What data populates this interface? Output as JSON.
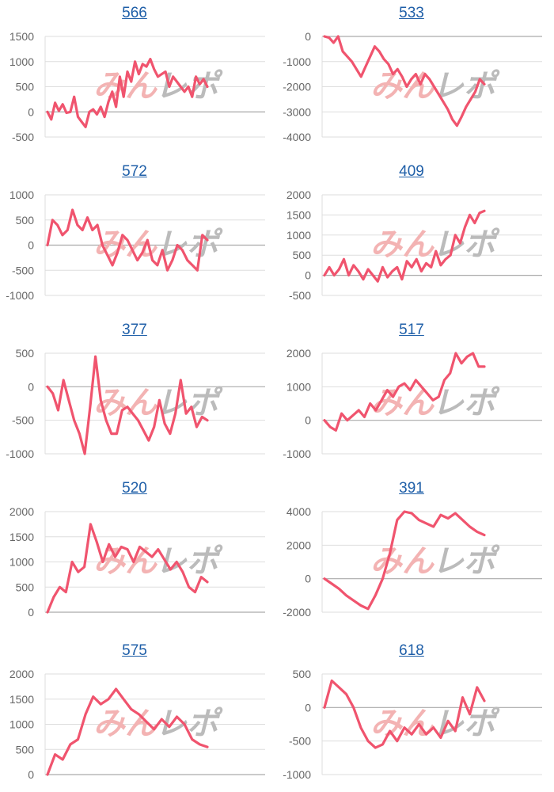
{
  "line_color": "#f0546e",
  "grid_color": "#dddddd",
  "zero_line_color": "#aaaaaa",
  "title_color": "#1f5fa8",
  "watermark": {
    "left": "みん",
    "right": "レポ",
    "left_color": "#f3b3b3",
    "right_color": "#bbbbbb"
  },
  "chart_data": [
    {
      "type": "line",
      "title": "566",
      "ylim": [
        -500,
        1500
      ],
      "yticks": [
        "1500",
        "1000",
        "500",
        "0",
        "-500"
      ],
      "tickvals": [
        1500,
        1000,
        500,
        0,
        -500
      ],
      "values": [
        0,
        -150,
        180,
        20,
        150,
        -20,
        0,
        300,
        -100,
        -200,
        -300,
        0,
        50,
        -50,
        100,
        -100,
        200,
        400,
        100,
        700,
        300,
        800,
        600,
        1000,
        750,
        950,
        900,
        1050,
        850,
        700,
        750,
        800,
        500,
        700,
        600,
        500,
        400,
        500,
        300,
        700,
        550,
        650,
        500
      ]
    },
    {
      "type": "line",
      "title": "533",
      "ylim": [
        -4000,
        0
      ],
      "yticks": [
        "0",
        "-1000",
        "-2000",
        "-3000",
        "-4000"
      ],
      "tickvals": [
        0,
        -1000,
        -2000,
        -3000,
        -4000
      ],
      "values": [
        0,
        -50,
        -250,
        0,
        -600,
        -800,
        -1000,
        -1300,
        -1600,
        -1200,
        -800,
        -400,
        -600,
        -900,
        -1100,
        -1500,
        -1300,
        -1600,
        -2000,
        -1700,
        -1500,
        -1900,
        -1500,
        -1700,
        -2000,
        -2300,
        -2600,
        -2900,
        -3300,
        -3550,
        -3200,
        -2800,
        -2500,
        -2200,
        -1700,
        -1900
      ]
    },
    {
      "type": "line",
      "title": "572",
      "ylim": [
        -1000,
        1000
      ],
      "yticks": [
        "1000",
        "500",
        "0",
        "-500",
        "-1000"
      ],
      "tickvals": [
        1000,
        500,
        0,
        -500,
        -1000
      ],
      "values": [
        0,
        500,
        400,
        200,
        300,
        700,
        400,
        300,
        550,
        300,
        400,
        0,
        -200,
        -400,
        -150,
        200,
        100,
        -100,
        -300,
        -150,
        100,
        -300,
        -400,
        -100,
        -500,
        -300,
        0,
        -100,
        -300,
        -400,
        -500,
        200,
        100
      ]
    },
    {
      "type": "line",
      "title": "409",
      "ylim": [
        -500,
        2000
      ],
      "yticks": [
        "2000",
        "1500",
        "1000",
        "500",
        "0",
        "-500"
      ],
      "tickvals": [
        2000,
        1500,
        1000,
        500,
        0,
        -500
      ],
      "values": [
        0,
        200,
        0,
        150,
        400,
        0,
        250,
        100,
        -100,
        150,
        0,
        -150,
        200,
        -50,
        100,
        200,
        -100,
        350,
        200,
        400,
        100,
        300,
        200,
        600,
        250,
        400,
        500,
        1000,
        800,
        1200,
        1500,
        1300,
        1550,
        1600
      ]
    },
    {
      "type": "line",
      "title": "377",
      "ylim": [
        -1000,
        500
      ],
      "yticks": [
        "500",
        "0",
        "-500",
        "-1000"
      ],
      "tickvals": [
        500,
        0,
        -500,
        -1000
      ],
      "values": [
        0,
        -100,
        -350,
        100,
        -200,
        -500,
        -700,
        -1000,
        -300,
        450,
        -200,
        -500,
        -700,
        -700,
        -350,
        -300,
        -400,
        -500,
        -650,
        -800,
        -600,
        -200,
        -550,
        -700,
        -400,
        100,
        -400,
        -300,
        -600,
        -450,
        -500
      ]
    },
    {
      "type": "line",
      "title": "517",
      "ylim": [
        -1000,
        2000
      ],
      "yticks": [
        "2000",
        "1000",
        "0",
        "-1000"
      ],
      "tickvals": [
        2000,
        1000,
        0,
        -1000
      ],
      "values": [
        0,
        -200,
        -300,
        200,
        0,
        150,
        300,
        100,
        500,
        300,
        600,
        900,
        700,
        1000,
        1100,
        900,
        1200,
        1000,
        800,
        600,
        700,
        1200,
        1400,
        2000,
        1700,
        1900,
        2000,
        1600,
        1600
      ]
    },
    {
      "type": "line",
      "title": "520",
      "ylim": [
        0,
        2000
      ],
      "yticks": [
        "2000",
        "1500",
        "1000",
        "500",
        "0"
      ],
      "tickvals": [
        2000,
        1500,
        1000,
        500,
        0
      ],
      "values": [
        0,
        300,
        500,
        400,
        1000,
        800,
        900,
        1750,
        1400,
        1000,
        1350,
        1100,
        1300,
        1250,
        1000,
        1300,
        1200,
        1100,
        1250,
        1050,
        850,
        1000,
        800,
        500,
        400,
        700,
        600
      ]
    },
    {
      "type": "line",
      "title": "391",
      "ylim": [
        -2000,
        4000
      ],
      "yticks": [
        "4000",
        "2000",
        "0",
        "-2000"
      ],
      "tickvals": [
        4000,
        2000,
        0,
        -2000
      ],
      "values": [
        0,
        -300,
        -600,
        -1000,
        -1300,
        -1600,
        -1800,
        -1000,
        0,
        1500,
        3500,
        4000,
        3900,
        3500,
        3300,
        3100,
        3800,
        3600,
        3900,
        3500,
        3100,
        2800,
        2600
      ]
    },
    {
      "type": "line",
      "title": "575",
      "ylim": [
        0,
        2000
      ],
      "yticks": [
        "2000",
        "1500",
        "1000",
        "500",
        "0"
      ],
      "tickvals": [
        2000,
        1500,
        1000,
        500,
        0
      ],
      "values": [
        0,
        400,
        300,
        600,
        700,
        1200,
        1550,
        1400,
        1500,
        1700,
        1500,
        1300,
        1200,
        1050,
        900,
        1100,
        950,
        1150,
        1000,
        700,
        600,
        550
      ]
    },
    {
      "type": "line",
      "title": "618",
      "ylim": [
        -1000,
        500
      ],
      "yticks": [
        "500",
        "0",
        "-500",
        "-1000"
      ],
      "tickvals": [
        500,
        0,
        -500,
        -1000
      ],
      "values": [
        0,
        400,
        300,
        200,
        0,
        -300,
        -500,
        -600,
        -550,
        -350,
        -500,
        -300,
        -400,
        -250,
        -400,
        -300,
        -450,
        -200,
        -350,
        150,
        -100,
        300,
        100
      ]
    }
  ]
}
